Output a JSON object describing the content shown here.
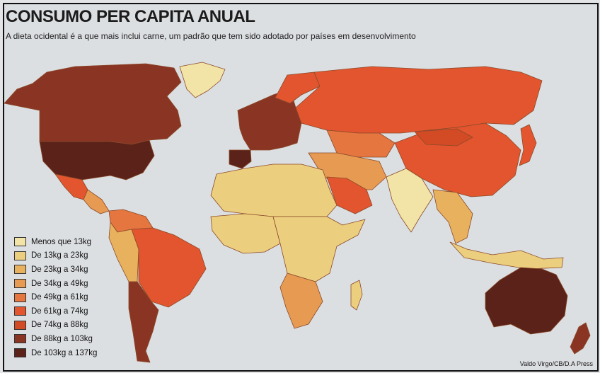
{
  "title": "CONSUMO PER CAPITA ANUAL",
  "subtitle": "A dieta ocidental é a que mais inclui carne, um padrão que tem sido adotado por países em desenvolvimento",
  "legend": [
    {
      "label": "Menos que 13kg",
      "color": "#f2e3a6"
    },
    {
      "label": "De 13kg a 23kg",
      "color": "#eccf7e"
    },
    {
      "label": "De 23kg a 34kg",
      "color": "#e8b15e"
    },
    {
      "label": "De 34kg a 49kg",
      "color": "#e79a52"
    },
    {
      "label": "De 49kg a 61kg",
      "color": "#e5763f"
    },
    {
      "label": "De 61kg a 74kg",
      "color": "#e3552e"
    },
    {
      "label": "De 74kg a 88kg",
      "color": "#d34b25"
    },
    {
      "label": "De 88kg a 103kg",
      "color": "#8a3524"
    },
    {
      "label": "De 103kg a 137kg",
      "color": "#5a2218"
    }
  ],
  "regions": [
    {
      "name": "Canadá",
      "class": 7
    },
    {
      "name": "Groenlândia",
      "class": 0
    },
    {
      "name": "Estados Unidos",
      "class": 8
    },
    {
      "name": "México",
      "class": 5
    },
    {
      "name": "América Central",
      "class": 3
    },
    {
      "name": "Colômbia e Venezuela",
      "class": 4
    },
    {
      "name": "Peru e Bolívia",
      "class": 2
    },
    {
      "name": "Brasil",
      "class": 5
    },
    {
      "name": "Argentina",
      "class": 7
    },
    {
      "name": "Europa Ocidental",
      "class": 7
    },
    {
      "name": "Espanha",
      "class": 8
    },
    {
      "name": "Escandinávia",
      "class": 5
    },
    {
      "name": "Rússia",
      "class": 5
    },
    {
      "name": "Cazaquistão e Ásia Central",
      "class": 4
    },
    {
      "name": "China",
      "class": 5
    },
    {
      "name": "Mongólia",
      "class": 6
    },
    {
      "name": "Oriente Médio",
      "class": 3
    },
    {
      "name": "Arábia Saudita",
      "class": 5
    },
    {
      "name": "Índia",
      "class": 0
    },
    {
      "name": "Sudeste Asiático",
      "class": 2
    },
    {
      "name": "Japão",
      "class": 5
    },
    {
      "name": "Indonésia",
      "class": 1
    },
    {
      "name": "Norte da África",
      "class": 1
    },
    {
      "name": "África Ocidental",
      "class": 1
    },
    {
      "name": "África Oriental",
      "class": 1
    },
    {
      "name": "África do Sul",
      "class": 3
    },
    {
      "name": "Madagascar",
      "class": 1
    },
    {
      "name": "Austrália",
      "class": 8
    },
    {
      "name": "Nova Zelândia",
      "class": 7
    }
  ],
  "credit": "Valdo Virgo/CB/D.A Press"
}
